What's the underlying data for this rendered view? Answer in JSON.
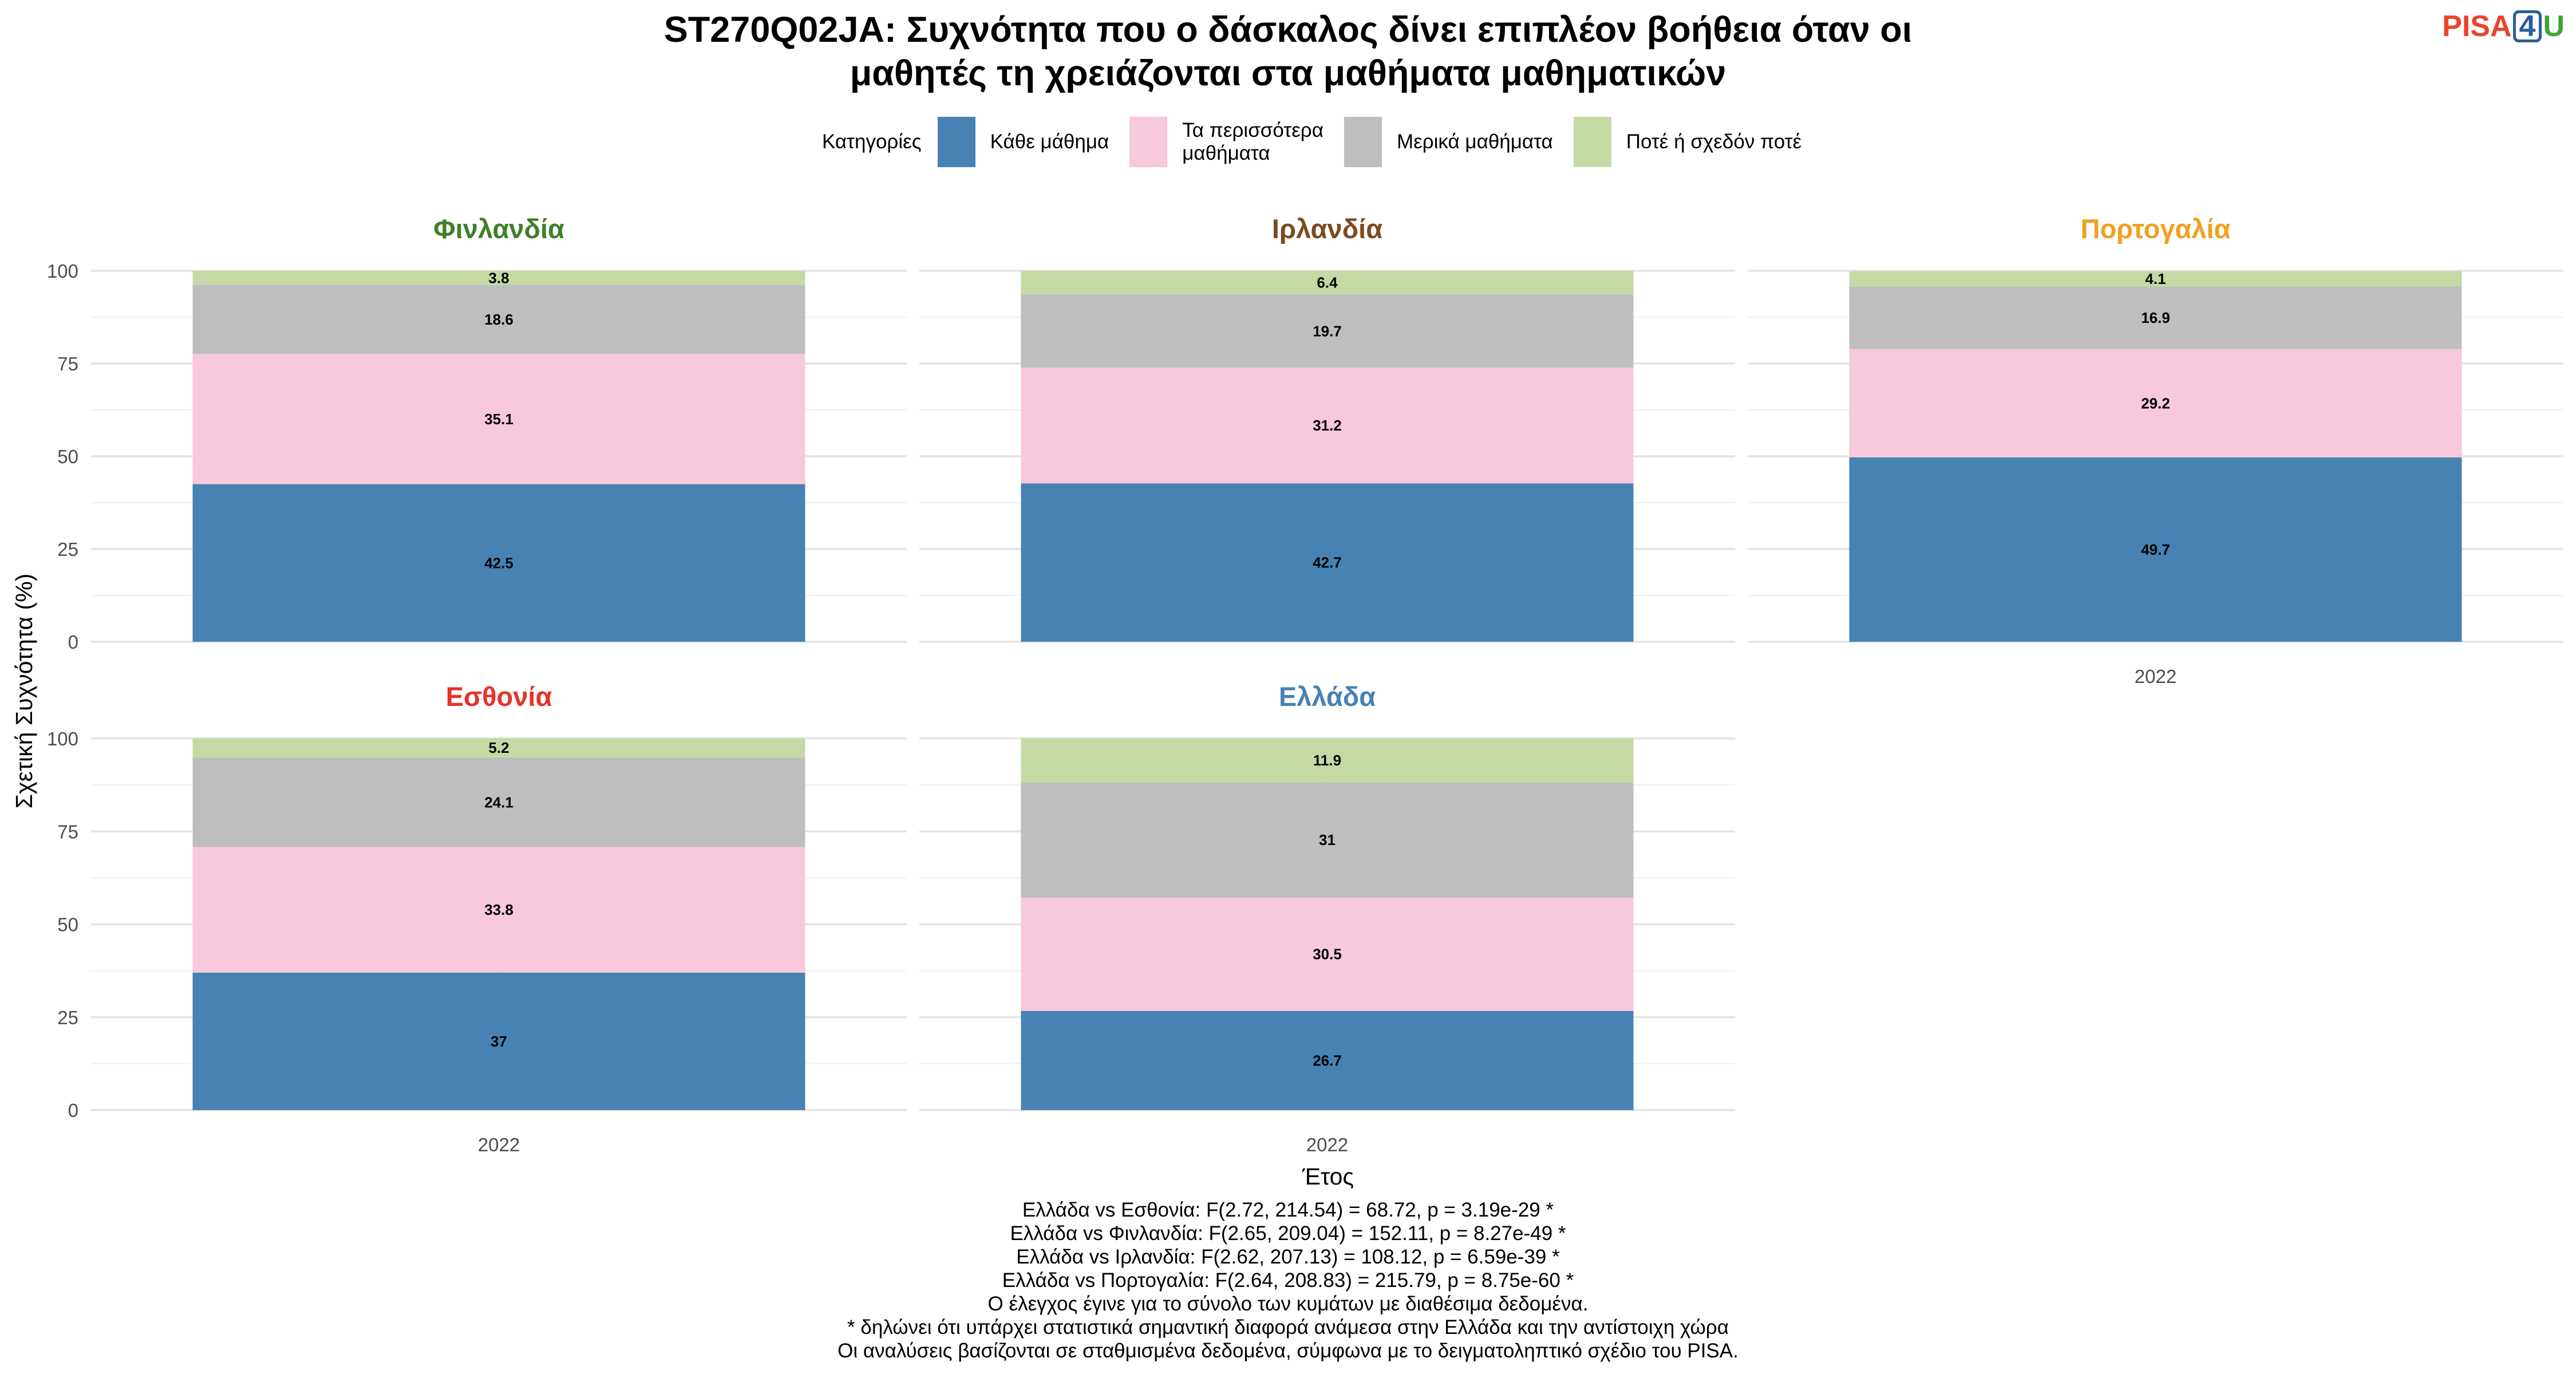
{
  "title_lines": [
    "ST270Q02JA: Συχνότητα που ο δάσκαλος δίνει επιπλέον βοήθεια όταν οι",
    "μαθητές τη χρειάζονται στα μαθήματα μαθηματικών"
  ],
  "logo": {
    "part1": "PISA",
    "part2": "4",
    "part3": "U"
  },
  "legend": {
    "title": "Κατηγορίες",
    "position": "top",
    "items": [
      {
        "label": "Κάθε μάθημα",
        "color": "#4682b4"
      },
      {
        "label": "Τα περισσότερα\nμαθήματα",
        "color": "#f8c8dc"
      },
      {
        "label": "Μερικά μαθήματα",
        "color": "#bebebe"
      },
      {
        "label": "Ποτέ ή σχεδόν ποτέ",
        "color": "#c5d9a5"
      }
    ]
  },
  "chart_data": {
    "type": "bar",
    "stacked": true,
    "facets": [
      {
        "name": "Φινλανδία",
        "title_color": "#3f7f2a",
        "categories": [
          "2022"
        ],
        "series": [
          {
            "name": "Κάθε μάθημα",
            "values": [
              42.5
            ]
          },
          {
            "name": "Τα περισσότερα μαθήματα",
            "values": [
              35.1
            ]
          },
          {
            "name": "Μερικά μαθήματα",
            "values": [
              18.6
            ]
          },
          {
            "name": "Ποτέ ή σχεδόν ποτέ",
            "values": [
              3.8
            ]
          }
        ]
      },
      {
        "name": "Ιρλανδία",
        "title_color": "#7b4a1e",
        "categories": [
          "2022"
        ],
        "series": [
          {
            "name": "Κάθε μάθημα",
            "values": [
              42.7
            ]
          },
          {
            "name": "Τα περισσότερα μαθήματα",
            "values": [
              31.2
            ]
          },
          {
            "name": "Μερικά μαθήματα",
            "values": [
              19.7
            ]
          },
          {
            "name": "Ποτέ ή σχεδόν ποτέ",
            "values": [
              6.4
            ]
          }
        ]
      },
      {
        "name": "Πορτογαλία",
        "title_color": "#f0a01e",
        "categories": [
          "2022"
        ],
        "series": [
          {
            "name": "Κάθε μάθημα",
            "values": [
              49.7
            ]
          },
          {
            "name": "Τα περισσότερα μαθήματα",
            "values": [
              29.2
            ]
          },
          {
            "name": "Μερικά μαθήματα",
            "values": [
              16.9
            ]
          },
          {
            "name": "Ποτέ ή σχεδόν ποτέ",
            "values": [
              4.1
            ]
          }
        ]
      },
      {
        "name": "Εσθονία",
        "title_color": "#e8312a",
        "categories": [
          "2022"
        ],
        "series": [
          {
            "name": "Κάθε μάθημα",
            "values": [
              37
            ]
          },
          {
            "name": "Τα περισσότερα μαθήματα",
            "values": [
              33.8
            ]
          },
          {
            "name": "Μερικά μαθήματα",
            "values": [
              24.1
            ]
          },
          {
            "name": "Ποτέ ή σχεδόν ποτέ",
            "values": [
              5.2
            ]
          }
        ]
      },
      {
        "name": "Ελλάδα",
        "title_color": "#4682b4",
        "categories": [
          "2022"
        ],
        "series": [
          {
            "name": "Κάθε μάθημα",
            "values": [
              26.7
            ]
          },
          {
            "name": "Τα περισσότερα μαθήματα",
            "values": [
              30.5
            ]
          },
          {
            "name": "Μερικά μαθήματα",
            "values": [
              31
            ]
          },
          {
            "name": "Ποτέ ή σχεδόν ποτέ",
            "values": [
              11.9
            ]
          }
        ]
      }
    ],
    "xlabel": "Έτος",
    "ylabel": "Σχετική Συχνότητα (%)",
    "ylim": [
      0,
      100
    ],
    "yticks": [
      0,
      25,
      50,
      75,
      100
    ],
    "grid": true
  },
  "footnotes": [
    "Ελλάδα vs Εσθονία: F(2.72, 214.54) = 68.72, p = 3.19e-29 *",
    "Ελλάδα vs Φινλανδία: F(2.65, 209.04) = 152.11, p = 8.27e-49 *",
    "Ελλάδα vs Ιρλανδία: F(2.62, 207.13) = 108.12, p = 6.59e-39 *",
    "Ελλάδα vs Πορτογαλία: F(2.64, 208.83) = 215.79, p = 8.75e-60 *",
    "Ο έλεγχος έγινε για το σύνολο των κυμάτων με διαθέσιμα δεδομένα.",
    "* δηλώνει ότι υπάρχει στατιστικά σημαντική διαφορά ανάμεσα στην Ελλάδα και την αντίστοιχη χώρα",
    "Οι αναλύσεις βασίζονται σε σταθμισμένα δεδομένα, σύμφωνα με το δειγματοληπτικό σχέδιο του PISA."
  ]
}
